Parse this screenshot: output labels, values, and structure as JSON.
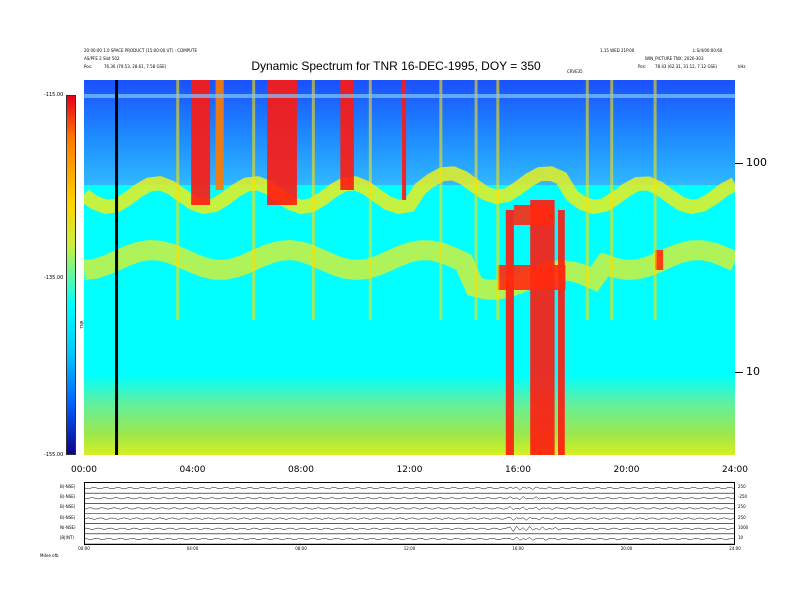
{
  "header": {
    "left_line1": "20:00:00 1.0 SPACE PRODUCT (15:00:00 UT) : COMPUTE",
    "left_line2": "AS/PFE 2 Slot 502",
    "left_pos_label": "Pos:",
    "left_pos_value": "76.36 (79.53, 28.61, 7.58 GSE)",
    "right_line1": "1.15 WED 21P.00",
    "right_line1b": "L:S/4/00:00:60",
    "right_line2": "WIN_PICTURE TNX: 2020-303",
    "right_pos_label": "Pos:",
    "right_pos_value": "78.43 (62.31, 31.12, 7.12 GSE)",
    "unit_label": "kHz",
    "center_small": "CRVE35"
  },
  "chart_data": {
    "type": "heatmap",
    "title": "Dynamic Spectrum for TNR 16-DEC-1995, DOY = 350",
    "xlabel": "",
    "ylabel": "",
    "colorbar": {
      "label": "TNR",
      "ticks": [
        "-115.00",
        "-135.00",
        "-155.00"
      ],
      "colors": [
        "#e8001a",
        "#ff7a00",
        "#ffd400",
        "#c8f040",
        "#00ffff",
        "#00c8ff",
        "#0060ff",
        "#10008c"
      ]
    },
    "x_ticks": [
      "00:00",
      "04:00",
      "08:00",
      "12:00",
      "16:00",
      "20:00",
      "24:00"
    ],
    "x_range_hours": [
      0,
      24
    ],
    "y_scale": "log",
    "y_range_khz": [
      4,
      250
    ],
    "y_ticks": [
      {
        "value": 100,
        "label": "100"
      },
      {
        "value": 10,
        "label": "10"
      }
    ],
    "marker_time_hours": 1.2,
    "features": [
      {
        "name": "background",
        "color": "#00ffff"
      },
      {
        "name": "upper band",
        "color": "#1f6cff"
      },
      {
        "name": "lower band",
        "color": "#6cd84a"
      },
      {
        "name": "emission band",
        "color": "#ffea00"
      },
      {
        "name": "intense bursts",
        "color": "#ff1010"
      }
    ]
  },
  "lower_panel": {
    "lanes": [
      {
        "label": "B(-NSE)",
        "right": "250"
      },
      {
        "label": "B(-NSE)",
        "right": "-250"
      },
      {
        "label": "B(-NSE)",
        "right": "250"
      },
      {
        "label": "B(-NSE)",
        "right": "250"
      },
      {
        "label": "N(-NSE)",
        "right": "1000"
      },
      {
        "label": "|B|(NT)",
        "right": "10"
      }
    ],
    "x_ticks": [
      "00:00",
      "04:00",
      "08:00",
      "12:00",
      "16:00",
      "20:00",
      "24:00"
    ],
    "footer_left": "Mdee   ofb"
  }
}
